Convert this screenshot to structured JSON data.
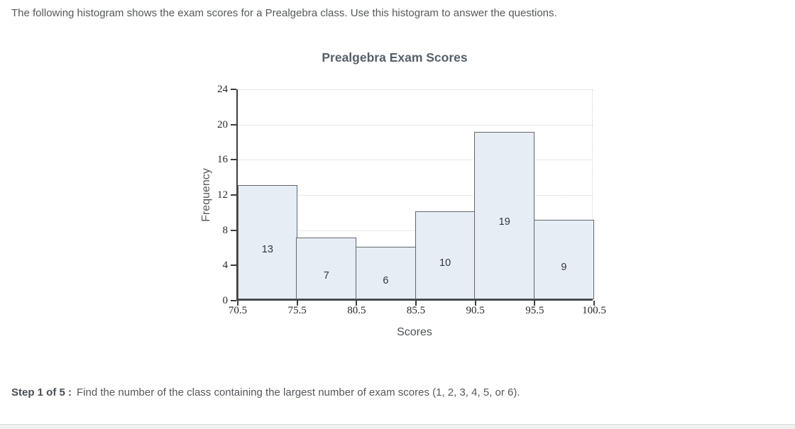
{
  "page": {
    "intro_text": "The following histogram shows the exam scores for a Prealgebra class. Use this histogram to answer the questions.",
    "step": {
      "label": "Step 1 of 5 :",
      "text": "Find the number of the class containing the largest number of exam scores (1, 2, 3, 4, 5, or 6)."
    }
  },
  "chart_data": {
    "type": "bar",
    "variant": "histogram",
    "title": "Prealgebra Exam Scores",
    "xlabel": "Scores",
    "ylabel": "Frequency",
    "bin_edges": [
      70.5,
      75.5,
      80.5,
      85.5,
      90.5,
      95.5,
      100.5
    ],
    "values": [
      13,
      7,
      6,
      10,
      19,
      9
    ],
    "ylim": [
      0,
      24
    ],
    "yticks": [
      0,
      4,
      8,
      12,
      16,
      20,
      24
    ],
    "grid": "horizontal-dotted",
    "legend": "none",
    "colors": {
      "bar_fill": "#e7edf5",
      "bar_border": "#63676d",
      "axis": "#3f3f3f",
      "gridline": "#cfcfcf",
      "title": "#566068",
      "body_text": "#54585b"
    }
  }
}
